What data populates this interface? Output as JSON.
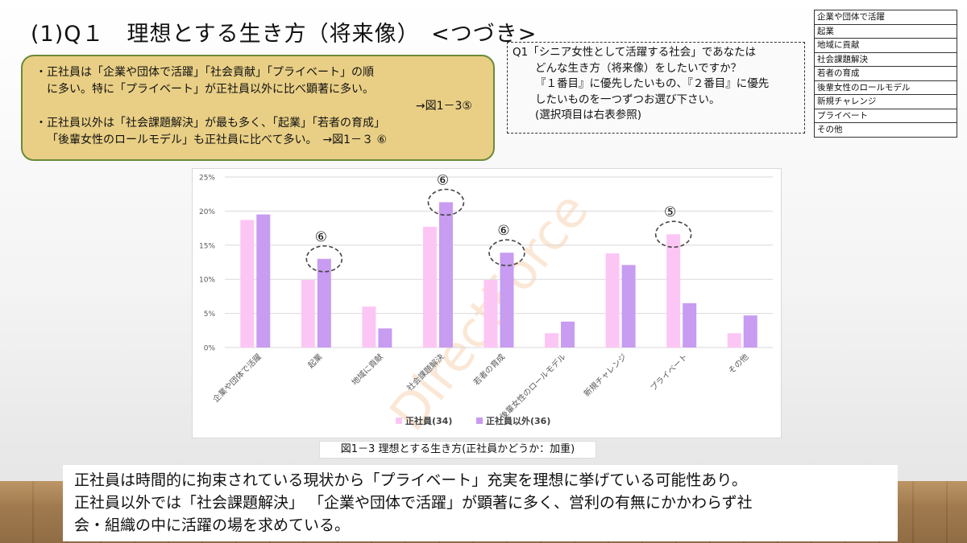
{
  "slide": {
    "title": "(1)Q１　理想とする生き方（将来像）　<つづき>"
  },
  "summary": {
    "bullet1_line1": "・正社員は「企業や団体で活躍」「社会貢献」「プライベート」の順",
    "bullet1_line2": "に多い。特に「プライベート」が正社員以外に比べ顕著に多い。",
    "bullet1_ref": "→図1－3⑤",
    "bullet2_line1": "・正社員以外は「社会課題解決」が最も多く、「起業」「若者の育成」",
    "bullet2_line2": "「後輩女性のロールモデル」も正社員に比べて多い。　→図1－３ ⑥"
  },
  "question": {
    "line1": "Q1「シニア女性として活躍する社会」であなたは",
    "line2": "どんな生き方（将来像）をしたいですか？",
    "line3": "『１番目』に優先したいもの、『２番目』に優先",
    "line4": "したいものを一つずつお選び下さい。",
    "line5": "(選択項目は右表参照)"
  },
  "options": [
    "企業や団体で活躍",
    "起業",
    "地域に貢献",
    "社会課題解決",
    "若者の育成",
    "後輩女性のロールモデル",
    "新規チャレンジ",
    "プライベート",
    "その他"
  ],
  "watermark": "DirectForce",
  "caption": "図1－3 理想とする生き方(正社員かどうか：加重)",
  "conclusion": {
    "line1": "正社員は時間的に拘束されている現状から「プライベート」充実を理想に挙げている可能性あり。",
    "line2": "正社員以外では「社会課題解決」 「企業や団体で活躍」が顕著に多く、営利の有無にかかわらず社",
    "line3": "会・組織の中に活躍の場を求めている。"
  },
  "colors": {
    "series1": "#fcc6f4",
    "series2": "#c79cf1",
    "grid": "#d9d9d9",
    "watermark": "#f6c9a4"
  },
  "chart_data": {
    "type": "bar",
    "categories": [
      "企業や団体で活躍",
      "起業",
      "地域に貢献",
      "社会課題解決",
      "若者の育成",
      "後輩女性のロールモデル",
      "新規チャレンジ",
      "プライベート",
      "その他"
    ],
    "series": [
      {
        "name": "正社員(34)",
        "values": [
          18.7,
          9.9,
          6.0,
          17.7,
          9.9,
          2.1,
          13.8,
          16.6,
          2.1
        ]
      },
      {
        "name": "正社員以外(36)",
        "values": [
          19.5,
          13.0,
          2.8,
          21.3,
          13.9,
          3.8,
          12.1,
          6.5,
          4.7
        ]
      }
    ],
    "y_ticks": [
      "0%",
      "5%",
      "10%",
      "15%",
      "20%",
      "25%"
    ],
    "ylim": [
      0,
      25
    ],
    "grid": true,
    "legend": "bottom-center",
    "annotations": [
      {
        "label": "⑥",
        "category": "起業",
        "series": 1
      },
      {
        "label": "⑥",
        "category": "社会課題解決",
        "series": 1
      },
      {
        "label": "⑥",
        "category": "若者の育成",
        "series": 1
      },
      {
        "label": "⑤",
        "category": "プライベート",
        "series": 0
      }
    ]
  }
}
